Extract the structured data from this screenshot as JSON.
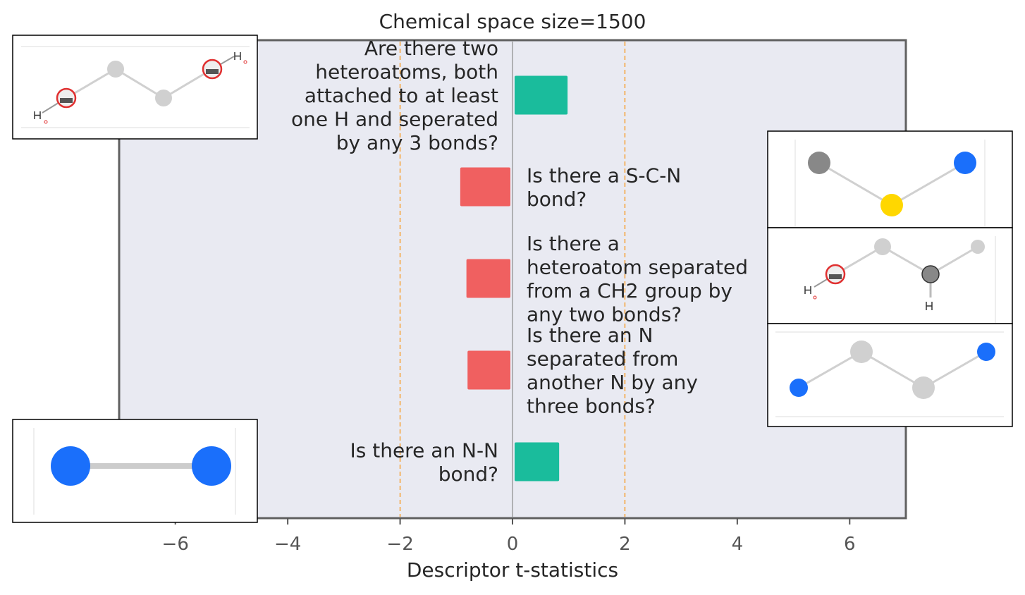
{
  "chart_data": {
    "type": "bar",
    "orientation": "horizontal",
    "title": "Chemical space size=1500",
    "xlabel": "Descriptor t-statistics",
    "ylabel": "",
    "xlim": [
      -7.0,
      7.0
    ],
    "xticks": [
      -6,
      -4,
      -2,
      0,
      2,
      4,
      6
    ],
    "xtick_labels": [
      "−6",
      "−4",
      "−2",
      "0",
      "2",
      "4",
      "6"
    ],
    "significance_lines": [
      -2,
      2
    ],
    "grid": false,
    "colors": {
      "positive": "#1abc9c",
      "negative": "#f06060",
      "plot_background": "#e9eaf2",
      "significance_line": "#f5a742",
      "zero_line": "#8c8c8c"
    },
    "categories": [
      "Are there two heteroatoms, both attached to at least one H and seperated by any 3 bonds?",
      "Is there a S-C-N bond?",
      "Is there a heteroatom separated from a CH2 group by any two bonds?",
      "Is there an N separated from another N by any three bonds?",
      "Is there an N-N bond?"
    ],
    "values": [
      0.98,
      -0.93,
      -0.82,
      -0.8,
      0.83
    ],
    "label_lines": [
      [
        "Are there two",
        "heteroatoms, both",
        "attached to at least",
        "one H and seperated",
        "by any 3 bonds?"
      ],
      [
        "Is there a S-C-N",
        "bond?"
      ],
      [
        "Is there a",
        "heteroatom separated",
        "from a CH2 group by",
        "any two bonds?"
      ],
      [
        "Is there an N",
        "separated from",
        "another N by any",
        "three bonds?"
      ],
      [
        "Is there an N-N",
        "bond?"
      ]
    ],
    "molecule_icons": [
      "ho-ch2-ch2-oh-fragment-icon",
      "s-c-n-fragment-icon",
      "heteroatom-ch2-fragment-icon",
      "n-c-c-n-fragment-icon",
      "n-n-bond-fragment-icon"
    ]
  }
}
